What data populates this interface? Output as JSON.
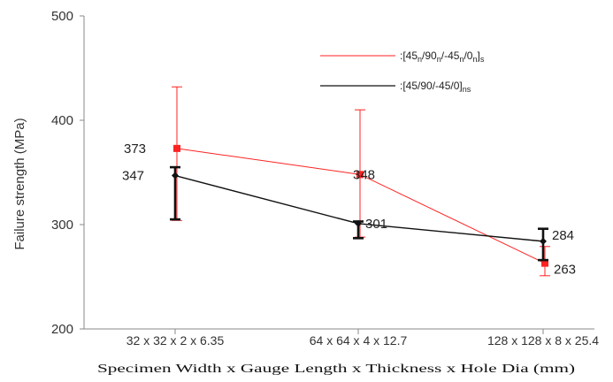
{
  "chart_data": {
    "type": "line",
    "categories": [
      "32 x 32 x 2 x 6.35",
      "64 x 64 x 4 x 12.7",
      "128 x 128 x 8 x 25.4"
    ],
    "ylabel": "Failure strength (MPa)",
    "xlabel": "Specimen Width x Gauge Length x Thickness x  Hole Dia  (mm)",
    "ylim": [
      200,
      500
    ],
    "yticks": [
      200,
      300,
      400,
      500
    ],
    "legend_position": "top-right",
    "series": [
      {
        "name": ":[45n/90n/-45n/0n]s",
        "color": "#ff2222",
        "values": [
          373,
          348,
          263
        ],
        "err_low": [
          304,
          288,
          251
        ],
        "err_high": [
          432,
          410,
          279
        ],
        "labels": [
          "373",
          "348",
          "263"
        ]
      },
      {
        "name": ":[45/90/-45/0]ns",
        "color": "#111111",
        "values": [
          347,
          301,
          284
        ],
        "err_low": [
          305,
          287,
          266
        ],
        "err_high": [
          355,
          303,
          296
        ],
        "labels": [
          "347",
          "301",
          "284"
        ]
      }
    ]
  }
}
